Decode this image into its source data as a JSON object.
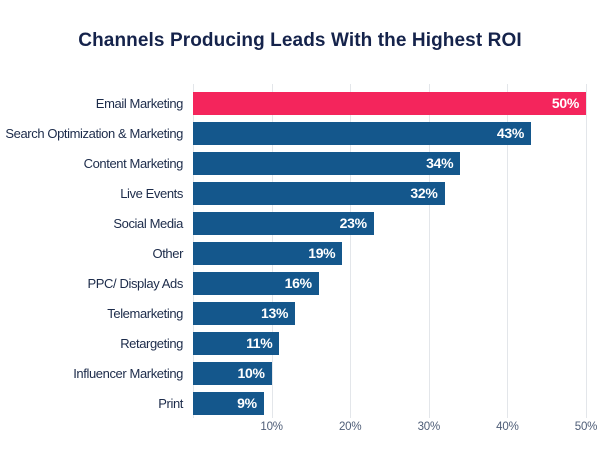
{
  "chart": {
    "title": "Channels Producing Leads With the Highest ROI"
  },
  "chart_data": {
    "type": "bar",
    "orientation": "horizontal",
    "title": "Channels Producing Leads With the Highest ROI",
    "categories": [
      "Email Marketing",
      "Search Optimization & Marketing",
      "Content Marketing",
      "Live Events",
      "Social Media",
      "Other",
      "PPC/ Display Ads",
      "Telemarketing",
      "Retargeting",
      "Influencer Marketing",
      "Print"
    ],
    "values": [
      50,
      43,
      34,
      32,
      23,
      19,
      16,
      13,
      11,
      10,
      9
    ],
    "value_labels": [
      "50%",
      "43%",
      "34%",
      "32%",
      "23%",
      "19%",
      "16%",
      "13%",
      "11%",
      "10%",
      "9%"
    ],
    "highlight_index": 0,
    "highlight_color": "#F4255C",
    "bar_color": "#14578C",
    "xlabel": "",
    "ylabel": "",
    "xlim": [
      0,
      50
    ],
    "x_ticks": [
      "10%",
      "20%",
      "30%",
      "40%",
      "50%"
    ],
    "grid": true,
    "legend": false
  },
  "colors": {
    "background": "#FFFFFF",
    "title_text": "#15234B",
    "category_text": "#1C2B4A",
    "tick_text": "#4E5D77",
    "gridline": "#E3E6EA",
    "value_text": "#FFFFFF"
  }
}
